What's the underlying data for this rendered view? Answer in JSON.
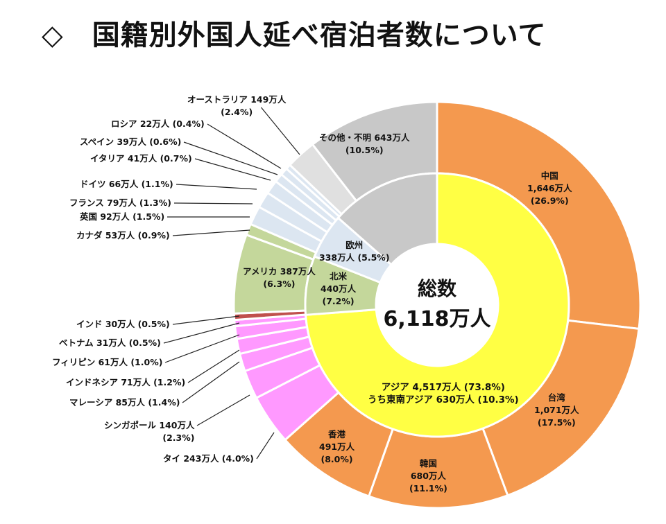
{
  "title": "◇　国籍別外国人延べ宿泊者数について",
  "chart_data": {
    "type": "pie",
    "subtype": "double-donut",
    "center_label": [
      "総数",
      "6,118万人"
    ],
    "outer": [
      {
        "name": "中国",
        "value": 1646,
        "pct": 26.9,
        "color": "#f4994f",
        "label": [
          "中国",
          "1,646万人",
          "(26.9%)"
        ]
      },
      {
        "name": "台湾",
        "value": 1071,
        "pct": 17.5,
        "color": "#f4994f",
        "label": [
          "台湾",
          "1,071万人",
          "(17.5%)"
        ]
      },
      {
        "name": "韓国",
        "value": 680,
        "pct": 11.1,
        "color": "#f4994f",
        "label": [
          "韓国",
          "680万人",
          "(11.1%)"
        ]
      },
      {
        "name": "香港",
        "value": 491,
        "pct": 8.0,
        "color": "#f4994f",
        "label": [
          "香港",
          "491万人",
          "(8.0%)"
        ]
      },
      {
        "name": "タイ",
        "value": 243,
        "pct": 4.0,
        "color": "#ff99ff",
        "label": [
          "タイ 243万人 (4.0%)"
        ]
      },
      {
        "name": "シンガポール",
        "value": 140,
        "pct": 2.3,
        "color": "#ff99ff",
        "label": [
          "シンガポール 140万人",
          "(2.3%)"
        ]
      },
      {
        "name": "マレーシア",
        "value": 85,
        "pct": 1.4,
        "color": "#ff99ff",
        "label": [
          "マレーシア 85万人 (1.4%)"
        ]
      },
      {
        "name": "インドネシア",
        "value": 71,
        "pct": 1.2,
        "color": "#ff99ff",
        "label": [
          "インドネシア 71万人 (1.2%)"
        ]
      },
      {
        "name": "フィリピン",
        "value": 61,
        "pct": 1.0,
        "color": "#ff99ff",
        "label": [
          "フィリピン 61万人 (1.0%)"
        ]
      },
      {
        "name": "ベトナム",
        "value": 31,
        "pct": 0.5,
        "color": "#ff99ff",
        "label": [
          "ベトナム 31万人 (0.5%)"
        ]
      },
      {
        "name": "インド",
        "value": 30,
        "pct": 0.5,
        "color": "#c0504d",
        "label": [
          "インド 30万人 (0.5%)"
        ]
      },
      {
        "name": "アメリカ",
        "value": 387,
        "pct": 6.3,
        "color": "#c4d79b",
        "label": [
          "アメリカ 387万人",
          "(6.3%)"
        ]
      },
      {
        "name": "カナダ",
        "value": 53,
        "pct": 0.9,
        "color": "#c4d79b",
        "label": [
          "カナダ 53万人 (0.9%)"
        ]
      },
      {
        "name": "英国",
        "value": 92,
        "pct": 1.5,
        "color": "#dce6f1",
        "label": [
          "英国 92万人 (1.5%)"
        ]
      },
      {
        "name": "フランス",
        "value": 79,
        "pct": 1.3,
        "color": "#dce6f1",
        "label": [
          "フランス 79万人 (1.3%)"
        ]
      },
      {
        "name": "ドイツ",
        "value": 66,
        "pct": 1.1,
        "color": "#dce6f1",
        "label": [
          "ドイツ 66万人 (1.1%)"
        ]
      },
      {
        "name": "イタリア",
        "value": 41,
        "pct": 0.7,
        "color": "#dce6f1",
        "label": [
          "イタリア 41万人 (0.7%)"
        ]
      },
      {
        "name": "スペイン",
        "value": 39,
        "pct": 0.6,
        "color": "#dce6f1",
        "label": [
          "スペイン 39万人 (0.6%)"
        ]
      },
      {
        "name": "ロシア",
        "value": 22,
        "pct": 0.4,
        "color": "#dce6f1",
        "label": [
          "ロシア 22万人 (0.4%)"
        ]
      },
      {
        "name": "オーストラリア",
        "value": 149,
        "pct": 2.4,
        "color": "#e0e0e0",
        "label": [
          "オーストラリア 149万人",
          "(2.4%)"
        ]
      },
      {
        "name": "その他・不明",
        "value": 643,
        "pct": 10.5,
        "color": "#c8c8c8",
        "label": [
          "その他・不明 643万人",
          "(10.5%)"
        ]
      }
    ],
    "inner": [
      {
        "name": "アジア",
        "pct": 73.8,
        "color": "#ffff44",
        "label": [
          "アジア 4,517万人 (73.8%)",
          "うち東南アジア 630万人 (10.3%)"
        ]
      },
      {
        "name": "北米",
        "pct": 7.2,
        "color": "#c4d79b",
        "label": [
          "北米",
          "440万人",
          "(7.2%)"
        ]
      },
      {
        "name": "欧州",
        "pct": 5.5,
        "color": "#dce6f1",
        "label": [
          "欧州",
          "338万人 (5.5%)"
        ]
      },
      {
        "name": "その他",
        "pct": 13.5,
        "color": "#c8c8c8",
        "label": []
      }
    ]
  }
}
